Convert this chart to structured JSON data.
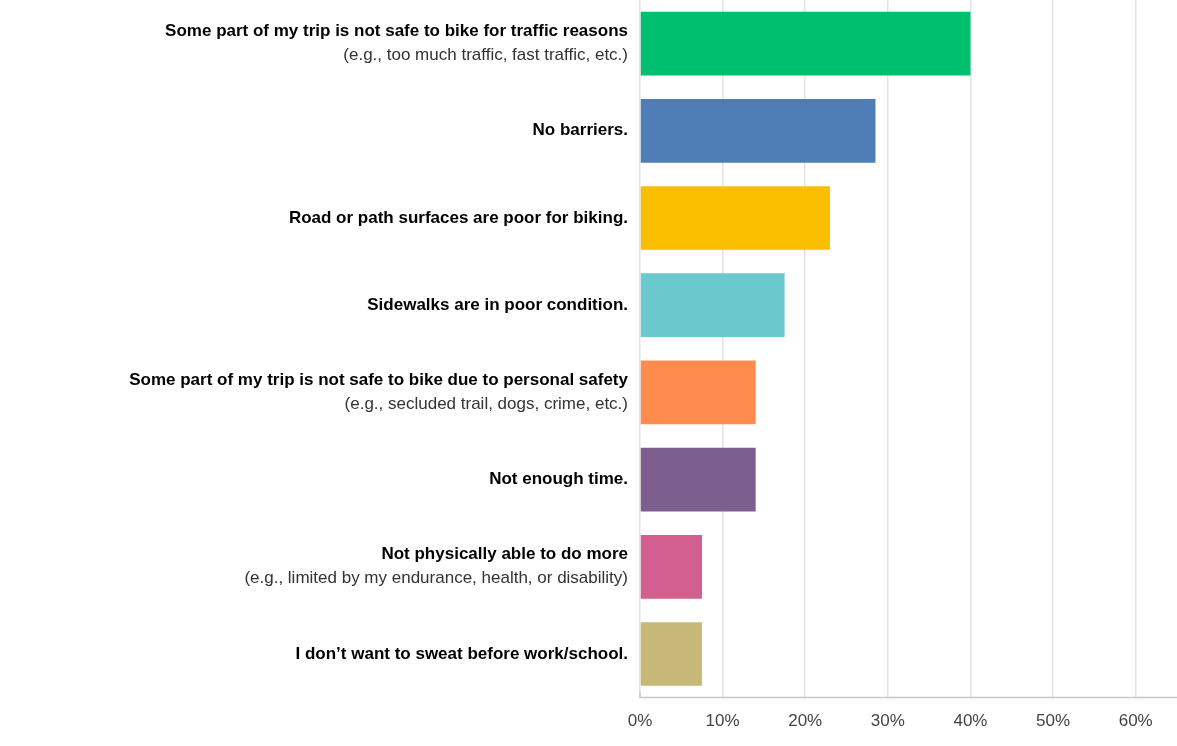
{
  "chart_data": {
    "type": "bar",
    "orientation": "horizontal",
    "categories": [
      "Some part of my trip is not safe to bike for traffic reasons\n(e.g., too much traffic, fast traffic, etc.)",
      "No barriers.",
      "Road or path surfaces are poor for biking.",
      "Sidewalks are in poor condition.",
      "Some part of my trip is not safe to bike due to personal safety\n(e.g., secluded trail, dogs, crime, etc.)",
      "Not enough time.",
      "Not physically able to do more\n(e.g., limited by my endurance, health, or disability)",
      "I don’t want to sweat before work/school."
    ],
    "values": [
      40,
      28.5,
      23,
      17.5,
      14,
      14,
      7.5,
      7.5
    ],
    "colors": [
      "#00bf6f",
      "#507cb6",
      "#f9be00",
      "#6bc8cd",
      "#ff8b4f",
      "#7d5e8f",
      "#d25f90",
      "#c7b879"
    ],
    "xlim": [
      0,
      65
    ],
    "xticks": [
      {
        "value": 0,
        "label": "0%"
      },
      {
        "value": 10,
        "label": "10%"
      },
      {
        "value": 20,
        "label": "20%"
      },
      {
        "value": 30,
        "label": "30%"
      },
      {
        "value": 40,
        "label": "40%"
      },
      {
        "value": 50,
        "label": "50%"
      },
      {
        "value": 60,
        "label": "60%"
      }
    ],
    "grid": "x"
  }
}
